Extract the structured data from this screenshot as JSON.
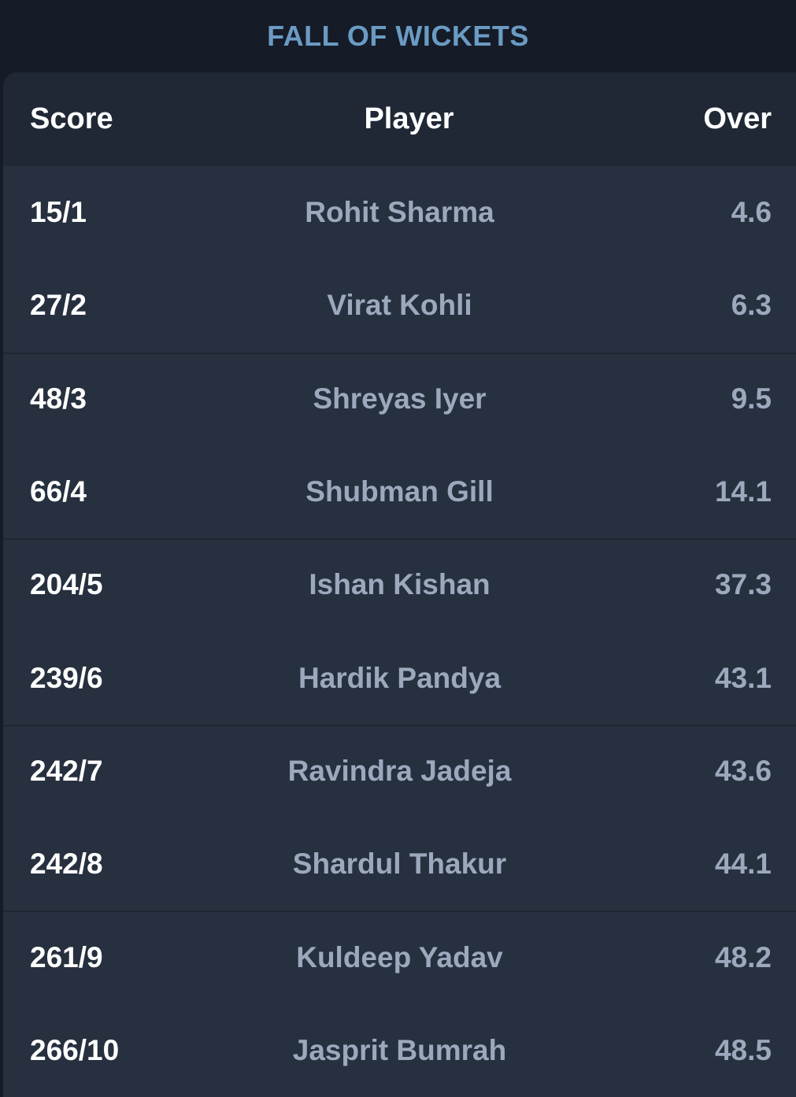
{
  "title": "FALL OF WICKETS",
  "columns": {
    "score": "Score",
    "player": "Player",
    "over": "Over"
  },
  "rows": [
    {
      "score": "15/1",
      "player": "Rohit Sharma",
      "over": "4.6"
    },
    {
      "score": "27/2",
      "player": "Virat Kohli",
      "over": "6.3"
    },
    {
      "score": "48/3",
      "player": "Shreyas Iyer",
      "over": "9.5"
    },
    {
      "score": "66/4",
      "player": "Shubman Gill",
      "over": "14.1"
    },
    {
      "score": "204/5",
      "player": "Ishan Kishan",
      "over": "37.3"
    },
    {
      "score": "239/6",
      "player": "Hardik Pandya",
      "over": "43.1"
    },
    {
      "score": "242/7",
      "player": "Ravindra Jadeja",
      "over": "43.6"
    },
    {
      "score": "242/8",
      "player": "Shardul Thakur",
      "over": "44.1"
    },
    {
      "score": "261/9",
      "player": "Kuldeep Yadav",
      "over": "48.2"
    },
    {
      "score": "266/10",
      "player": "Jasprit Bumrah",
      "over": "48.5"
    }
  ],
  "colors": {
    "background": "#151c28",
    "card": "#27303f",
    "header": "#202836",
    "title": "#6b9bc3",
    "primary_text": "#ffffff",
    "secondary_text": "#9ca9bd"
  }
}
